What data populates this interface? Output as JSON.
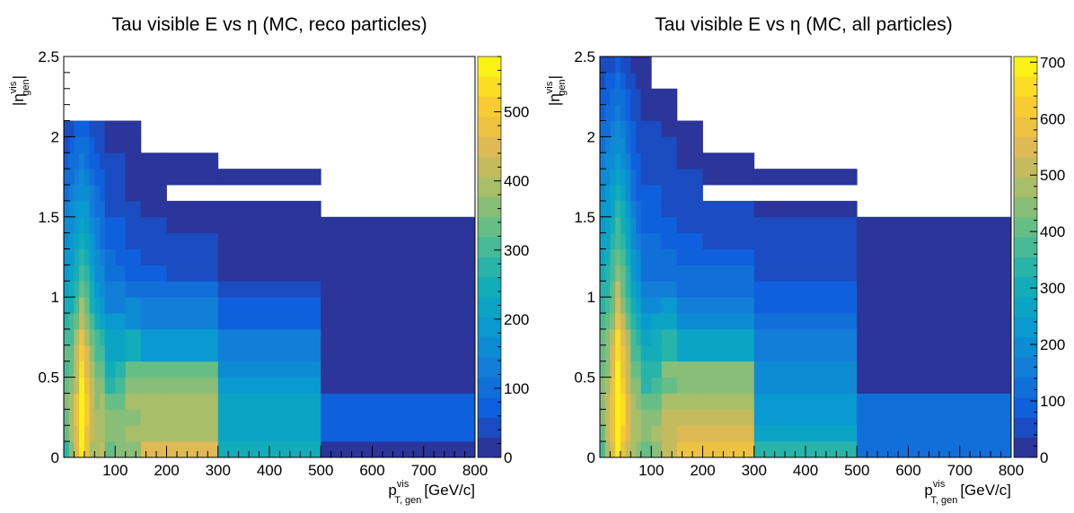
{
  "chart_data": [
    {
      "type": "heatmap",
      "title": "Tau visible E vs η (MC, reco particles)",
      "xlabel": {
        "main": "p",
        "sup": "vis",
        "sub": "T, gen",
        "unit": "[GeV/c]"
      },
      "ylabel": {
        "main": "|η",
        "sup": "vis",
        "sub": "gen",
        "close": "|"
      },
      "xlim": [
        0,
        800
      ],
      "ylim": [
        0,
        2.5
      ],
      "xticks": [
        100,
        200,
        300,
        400,
        500,
        600,
        700,
        800
      ],
      "yticks": [
        0,
        0.5,
        1,
        1.5,
        2,
        2.5
      ],
      "zlim": [
        0,
        580
      ],
      "zticks": [
        0,
        100,
        200,
        300,
        400,
        500
      ],
      "x_edges": [
        0,
        10,
        20,
        30,
        40,
        50,
        60,
        70,
        80,
        100,
        120,
        150,
        200,
        300,
        500,
        800
      ],
      "y_edges": [
        0,
        0.1,
        0.2,
        0.3,
        0.4,
        0.5,
        0.6,
        0.7,
        0.8,
        0.9,
        1.0,
        1.1,
        1.2,
        1.3,
        1.4,
        1.5,
        1.6,
        1.7,
        1.8,
        1.9,
        2.0,
        2.1
      ],
      "values": [
        [
          280,
          360,
          440,
          580,
          470,
          390,
          380,
          410,
          330,
          350,
          360,
          440,
          440,
          250,
          20
        ],
        [
          320,
          380,
          450,
          580,
          490,
          410,
          380,
          400,
          350,
          360,
          380,
          400,
          400,
          220,
          60
        ],
        [
          330,
          380,
          470,
          580,
          510,
          420,
          380,
          390,
          350,
          360,
          370,
          380,
          380,
          220,
          60
        ],
        [
          350,
          390,
          470,
          580,
          510,
          420,
          370,
          380,
          320,
          330,
          380,
          380,
          380,
          210,
          60
        ],
        [
          330,
          360,
          430,
          580,
          490,
          410,
          350,
          360,
          280,
          300,
          350,
          350,
          350,
          190,
          20
        ],
        [
          300,
          330,
          410,
          540,
          460,
          380,
          320,
          330,
          260,
          280,
          340,
          340,
          340,
          160,
          20
        ],
        [
          320,
          340,
          420,
          510,
          450,
          370,
          300,
          310,
          230,
          230,
          260,
          190,
          190,
          140,
          20
        ],
        [
          300,
          310,
          380,
          490,
          400,
          330,
          290,
          270,
          230,
          230,
          260,
          190,
          190,
          140,
          20
        ],
        [
          280,
          290,
          340,
          420,
          360,
          300,
          250,
          230,
          190,
          190,
          170,
          140,
          140,
          70,
          20
        ],
        [
          240,
          260,
          300,
          380,
          320,
          260,
          220,
          200,
          130,
          130,
          150,
          120,
          120,
          60,
          20
        ],
        [
          220,
          240,
          280,
          330,
          300,
          240,
          190,
          170,
          120,
          120,
          110,
          90,
          90,
          50,
          20
        ],
        [
          200,
          220,
          260,
          300,
          270,
          220,
          170,
          150,
          110,
          100,
          80,
          70,
          50,
          20,
          20
        ],
        [
          180,
          200,
          240,
          270,
          240,
          200,
          150,
          130,
          90,
          80,
          60,
          50,
          40,
          20,
          20
        ],
        [
          170,
          190,
          220,
          250,
          220,
          180,
          140,
          110,
          70,
          70,
          50,
          40,
          30,
          20,
          20
        ],
        [
          150,
          170,
          200,
          230,
          200,
          160,
          120,
          100,
          60,
          60,
          40,
          30,
          20,
          20,
          20
        ],
        [
          130,
          150,
          180,
          200,
          180,
          140,
          110,
          90,
          50,
          50,
          30,
          20,
          20,
          20,
          -1
        ],
        [
          110,
          130,
          150,
          170,
          150,
          120,
          90,
          70,
          40,
          40,
          25,
          20,
          -1,
          -1,
          -1
        ],
        [
          90,
          110,
          130,
          150,
          130,
          100,
          80,
          60,
          30,
          30,
          20,
          20,
          20,
          20,
          -1
        ],
        [
          70,
          90,
          110,
          120,
          110,
          80,
          60,
          50,
          30,
          30,
          20,
          20,
          20,
          -1,
          -1
        ],
        [
          50,
          70,
          90,
          100,
          90,
          60,
          50,
          40,
          20,
          20,
          20,
          -1,
          -1,
          -1,
          -1
        ],
        [
          30,
          50,
          70,
          80,
          70,
          50,
          40,
          30,
          20,
          20,
          20,
          -1,
          -1,
          -1,
          -1
        ]
      ]
    },
    {
      "type": "heatmap",
      "title": "Tau visible E vs  η (MC, all particles)",
      "xlabel": {
        "main": "p",
        "sup": "vis",
        "sub": "T, gen",
        "unit": "[GeV/c]"
      },
      "ylabel": {
        "main": "|η",
        "sup": "vis",
        "sub": "gen",
        "close": "|"
      },
      "xlim": [
        0,
        800
      ],
      "ylim": [
        0,
        2.5
      ],
      "xticks": [
        100,
        200,
        300,
        400,
        500,
        600,
        700,
        800
      ],
      "yticks": [
        0,
        0.5,
        1,
        1.5,
        2,
        2.5
      ],
      "zlim": [
        0,
        710
      ],
      "zticks": [
        0,
        100,
        200,
        300,
        400,
        500,
        600,
        700
      ],
      "x_edges": [
        0,
        10,
        20,
        30,
        40,
        50,
        60,
        70,
        80,
        100,
        120,
        150,
        200,
        300,
        500,
        800
      ],
      "y_edges": [
        0,
        0.1,
        0.2,
        0.3,
        0.4,
        0.5,
        0.6,
        0.7,
        0.8,
        0.9,
        1.0,
        1.1,
        1.2,
        1.3,
        1.4,
        1.5,
        1.6,
        1.7,
        1.8,
        1.9,
        2.0,
        2.1,
        2.2,
        2.3,
        2.4,
        2.5
      ],
      "values": [
        [
          380,
          480,
          560,
          700,
          600,
          520,
          470,
          460,
          420,
          440,
          520,
          600,
          600,
          330,
          110
        ],
        [
          420,
          500,
          580,
          700,
          620,
          540,
          480,
          470,
          460,
          470,
          500,
          540,
          540,
          260,
          110
        ],
        [
          440,
          520,
          600,
          700,
          640,
          560,
          490,
          480,
          440,
          460,
          500,
          530,
          530,
          240,
          110
        ],
        [
          450,
          520,
          600,
          700,
          650,
          560,
          470,
          460,
          400,
          420,
          490,
          480,
          480,
          220,
          110
        ],
        [
          430,
          490,
          570,
          700,
          620,
          530,
          440,
          440,
          350,
          380,
          420,
          430,
          430,
          210,
          30
        ],
        [
          400,
          450,
          540,
          690,
          600,
          500,
          410,
          400,
          330,
          340,
          430,
          430,
          430,
          190,
          30
        ],
        [
          420,
          460,
          550,
          660,
          590,
          500,
          380,
          370,
          300,
          300,
          340,
          280,
          280,
          160,
          30
        ],
        [
          400,
          430,
          510,
          640,
          550,
          470,
          360,
          330,
          280,
          300,
          320,
          280,
          280,
          160,
          30
        ],
        [
          380,
          400,
          460,
          600,
          500,
          420,
          320,
          300,
          230,
          250,
          260,
          200,
          200,
          110,
          30
        ],
        [
          340,
          360,
          420,
          560,
          450,
          370,
          290,
          260,
          200,
          210,
          230,
          170,
          170,
          100,
          30
        ],
        [
          320,
          340,
          400,
          500,
          420,
          340,
          260,
          230,
          160,
          160,
          160,
          140,
          140,
          80,
          30
        ],
        [
          300,
          320,
          380,
          460,
          400,
          320,
          240,
          200,
          140,
          140,
          140,
          110,
          110,
          60,
          30
        ],
        [
          280,
          300,
          360,
          420,
          370,
          300,
          220,
          180,
          130,
          130,
          120,
          100,
          100,
          60,
          30
        ],
        [
          260,
          280,
          330,
          390,
          340,
          280,
          200,
          160,
          110,
          110,
          100,
          80,
          70,
          40,
          30
        ],
        [
          240,
          260,
          300,
          360,
          310,
          250,
          180,
          140,
          100,
          100,
          80,
          70,
          60,
          40,
          30
        ],
        [
          220,
          240,
          280,
          330,
          290,
          230,
          160,
          120,
          90,
          90,
          70,
          60,
          50,
          30,
          -1
        ],
        [
          200,
          220,
          250,
          300,
          260,
          200,
          140,
          100,
          80,
          80,
          60,
          50,
          -1,
          -1,
          -1
        ],
        [
          180,
          200,
          220,
          270,
          230,
          180,
          120,
          90,
          70,
          70,
          50,
          40,
          30,
          30,
          -1
        ],
        [
          160,
          180,
          200,
          240,
          200,
          160,
          100,
          80,
          60,
          60,
          40,
          30,
          30,
          -1,
          -1
        ],
        [
          140,
          160,
          180,
          210,
          180,
          140,
          90,
          70,
          50,
          50,
          40,
          30,
          -1,
          -1,
          -1
        ],
        [
          120,
          140,
          160,
          190,
          160,
          120,
          80,
          60,
          40,
          40,
          30,
          30,
          -1,
          -1,
          -1
        ],
        [
          100,
          120,
          140,
          160,
          140,
          100,
          60,
          50,
          30,
          30,
          30,
          -1,
          -1,
          -1,
          -1
        ],
        [
          80,
          100,
          120,
          130,
          110,
          80,
          50,
          40,
          30,
          30,
          30,
          -1,
          -1,
          -1,
          -1
        ],
        [
          60,
          80,
          100,
          110,
          90,
          60,
          40,
          30,
          30,
          -1,
          -1,
          -1,
          -1,
          -1,
          -1
        ],
        [
          40,
          60,
          70,
          80,
          70,
          40,
          30,
          30,
          30,
          -1,
          -1,
          -1,
          -1,
          -1,
          -1
        ]
      ]
    }
  ]
}
